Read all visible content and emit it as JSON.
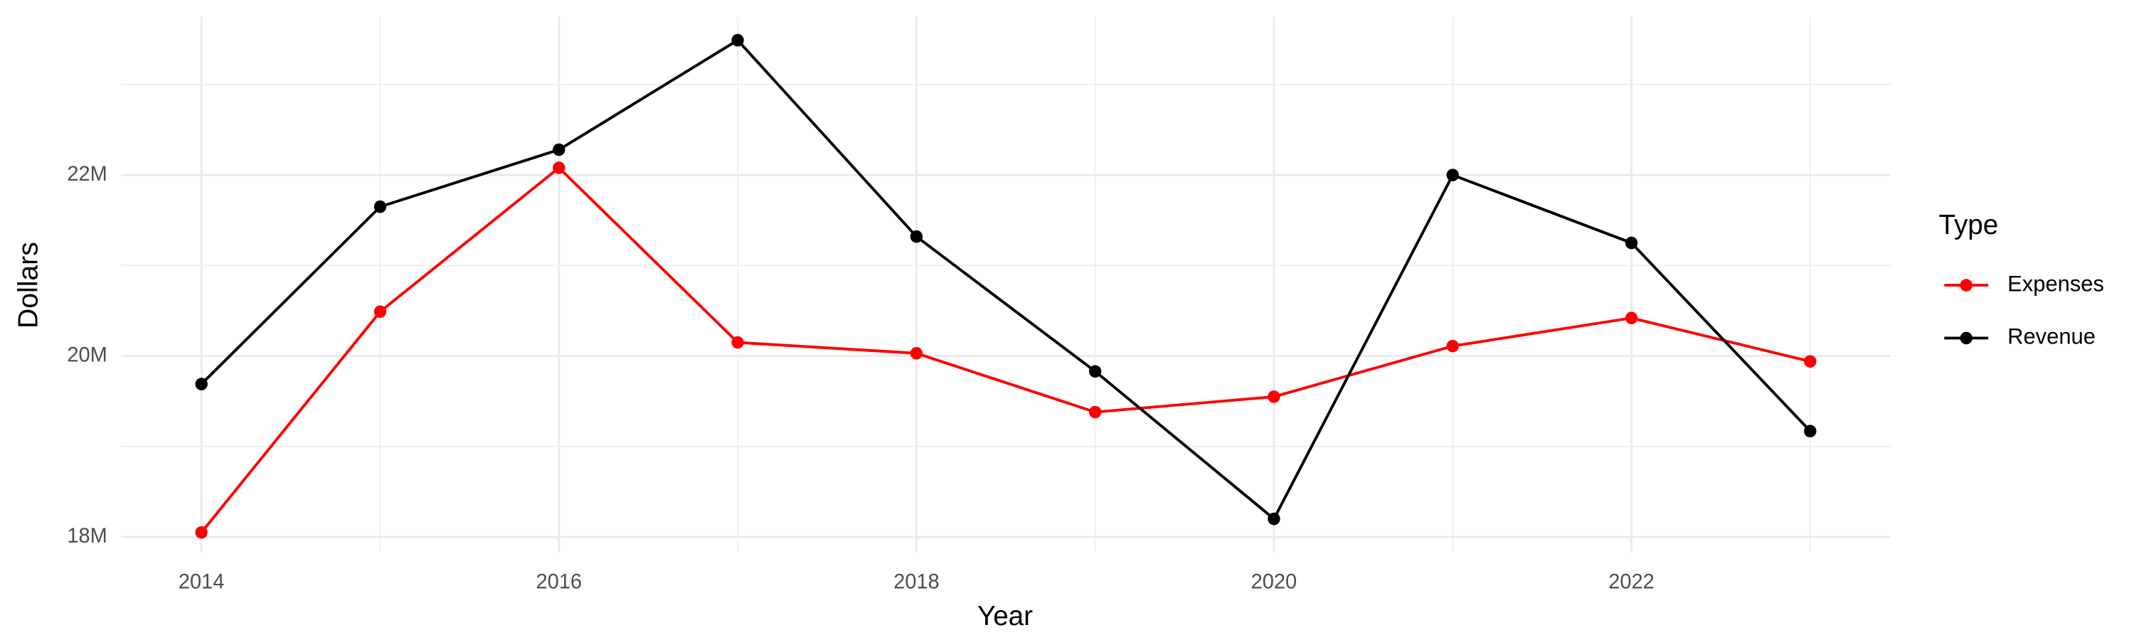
{
  "chart_data": {
    "type": "line",
    "x_label": "Year",
    "y_label": "Dollars",
    "legend_title": "Type",
    "x": [
      2014,
      2015,
      2016,
      2017,
      2018,
      2019,
      2020,
      2021,
      2022,
      2023
    ],
    "series": [
      {
        "name": "Expenses",
        "color": "#ff0000",
        "values": [
          18050000,
          20490000,
          22080000,
          20150000,
          20030000,
          19380000,
          19550000,
          20110000,
          20420000,
          19940000
        ]
      },
      {
        "name": "Revenue",
        "color": "#000000",
        "values": [
          19690000,
          21650000,
          22280000,
          23490000,
          21320000,
          19830000,
          18200000,
          22000000,
          21250000,
          19170000
        ]
      }
    ],
    "xlim": [
      2013.55,
      2023.45
    ],
    "xticks": [
      2014,
      2016,
      2018,
      2020,
      2022
    ],
    "ylim": [
      17830000,
      23750000
    ],
    "yticks": [
      {
        "value": 18000000,
        "label": "18M"
      },
      {
        "value": 20000000,
        "label": "20M"
      },
      {
        "value": 22000000,
        "label": "22M"
      }
    ],
    "grid": true,
    "legend_position": "right"
  }
}
